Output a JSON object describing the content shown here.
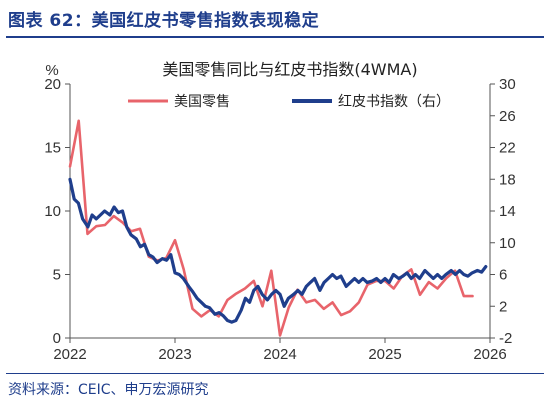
{
  "header": {
    "title": "图表 62：美国红皮书零售指数表现稳定"
  },
  "footer": {
    "source": "资料来源：CEIC、申万宏源研究"
  },
  "chart_data": {
    "type": "line",
    "title": "美国零售同比与红皮书指数(4WMA)",
    "ylabel_left": "%",
    "ylim_left": [
      0,
      20
    ],
    "yticks_left": [
      "0",
      "5",
      "10",
      "15",
      "20"
    ],
    "ylim_right": [
      -2,
      30
    ],
    "yticks_right": [
      "-2",
      "2",
      "6",
      "10",
      "14",
      "18",
      "22",
      "26",
      "30"
    ],
    "xlim": [
      2022,
      2026
    ],
    "xticks": [
      "2022",
      "2023",
      "2024",
      "2025",
      "2026"
    ],
    "legend_position": "top",
    "series": [
      {
        "name": "美国零售",
        "color": "#e8646b",
        "axis": "left",
        "x": [
          2022.0,
          2022.083,
          2022.167,
          2022.25,
          2022.333,
          2022.417,
          2022.5,
          2022.583,
          2022.667,
          2022.75,
          2022.833,
          2022.917,
          2023.0,
          2023.083,
          2023.167,
          2023.25,
          2023.333,
          2023.417,
          2023.5,
          2023.583,
          2023.667,
          2023.75,
          2023.833,
          2023.917,
          2024.0,
          2024.083,
          2024.167,
          2024.25,
          2024.333,
          2024.417,
          2024.5,
          2024.583,
          2024.667,
          2024.75,
          2024.833,
          2024.917,
          2025.0,
          2025.083,
          2025.167,
          2025.25,
          2025.333,
          2025.417,
          2025.5,
          2025.583,
          2025.667,
          2025.75,
          2025.833
        ],
        "values": [
          13.5,
          17.1,
          8.2,
          8.8,
          8.9,
          9.6,
          9.1,
          8.4,
          8.6,
          6.4,
          6.1,
          6.3,
          7.7,
          5.4,
          2.3,
          1.7,
          2.2,
          1.7,
          3.0,
          3.5,
          3.9,
          4.5,
          2.5,
          5.3,
          0.2,
          2.4,
          3.8,
          2.8,
          3.0,
          2.3,
          2.8,
          1.8,
          2.1,
          2.8,
          4.2,
          4.5,
          4.5,
          3.9,
          4.9,
          5.4,
          3.4,
          4.4,
          3.9,
          4.7,
          5.3,
          3.3,
          3.3
        ]
      },
      {
        "name": "红皮书指数（右）",
        "color": "#1f3e8c",
        "axis": "right",
        "x": [
          2022.0,
          2022.04,
          2022.08,
          2022.12,
          2022.17,
          2022.21,
          2022.25,
          2022.29,
          2022.33,
          2022.38,
          2022.42,
          2022.46,
          2022.5,
          2022.54,
          2022.58,
          2022.63,
          2022.67,
          2022.71,
          2022.75,
          2022.79,
          2022.83,
          2022.88,
          2022.92,
          2022.96,
          2023.0,
          2023.04,
          2023.08,
          2023.13,
          2023.17,
          2023.21,
          2023.25,
          2023.29,
          2023.33,
          2023.38,
          2023.42,
          2023.46,
          2023.5,
          2023.54,
          2023.58,
          2023.63,
          2023.67,
          2023.71,
          2023.75,
          2023.79,
          2023.83,
          2023.88,
          2023.92,
          2023.96,
          2024.0,
          2024.04,
          2024.08,
          2024.13,
          2024.17,
          2024.21,
          2024.25,
          2024.29,
          2024.33,
          2024.38,
          2024.42,
          2024.46,
          2024.5,
          2024.54,
          2024.58,
          2024.63,
          2024.67,
          2024.71,
          2024.75,
          2024.79,
          2024.83,
          2024.88,
          2024.92,
          2024.96,
          2025.0,
          2025.04,
          2025.08,
          2025.13,
          2025.17,
          2025.21,
          2025.25,
          2025.29,
          2025.33,
          2025.38,
          2025.42,
          2025.46,
          2025.5,
          2025.54,
          2025.58,
          2025.63,
          2025.67,
          2025.71,
          2025.75,
          2025.79,
          2025.83,
          2025.88,
          2025.92,
          2025.96
        ],
        "values": [
          18.0,
          15.5,
          15.0,
          13.0,
          12.0,
          13.5,
          13.0,
          13.5,
          14.0,
          13.5,
          14.5,
          13.8,
          14.0,
          12.0,
          11.0,
          10.5,
          9.5,
          9.8,
          8.5,
          8.2,
          7.5,
          8.0,
          7.8,
          8.5,
          6.2,
          6.0,
          5.5,
          4.5,
          3.8,
          3.0,
          2.5,
          2.0,
          1.8,
          1.0,
          1.2,
          0.8,
          0.2,
          0.0,
          0.2,
          1.5,
          3.0,
          2.5,
          4.0,
          4.5,
          3.5,
          2.8,
          3.5,
          4.0,
          3.5,
          2.0,
          3.0,
          3.5,
          4.0,
          3.5,
          4.5,
          5.0,
          5.5,
          4.0,
          5.0,
          5.5,
          6.0,
          5.5,
          5.8,
          4.5,
          5.0,
          5.5,
          5.0,
          5.5,
          5.0,
          5.2,
          5.5,
          5.0,
          5.5,
          5.0,
          6.0,
          5.5,
          5.8,
          6.2,
          5.5,
          6.0,
          5.5,
          6.5,
          6.0,
          5.5,
          6.0,
          5.5,
          6.0,
          6.5,
          6.0,
          6.5,
          6.0,
          5.8,
          6.2,
          6.5,
          6.3,
          7.0
        ]
      }
    ]
  }
}
